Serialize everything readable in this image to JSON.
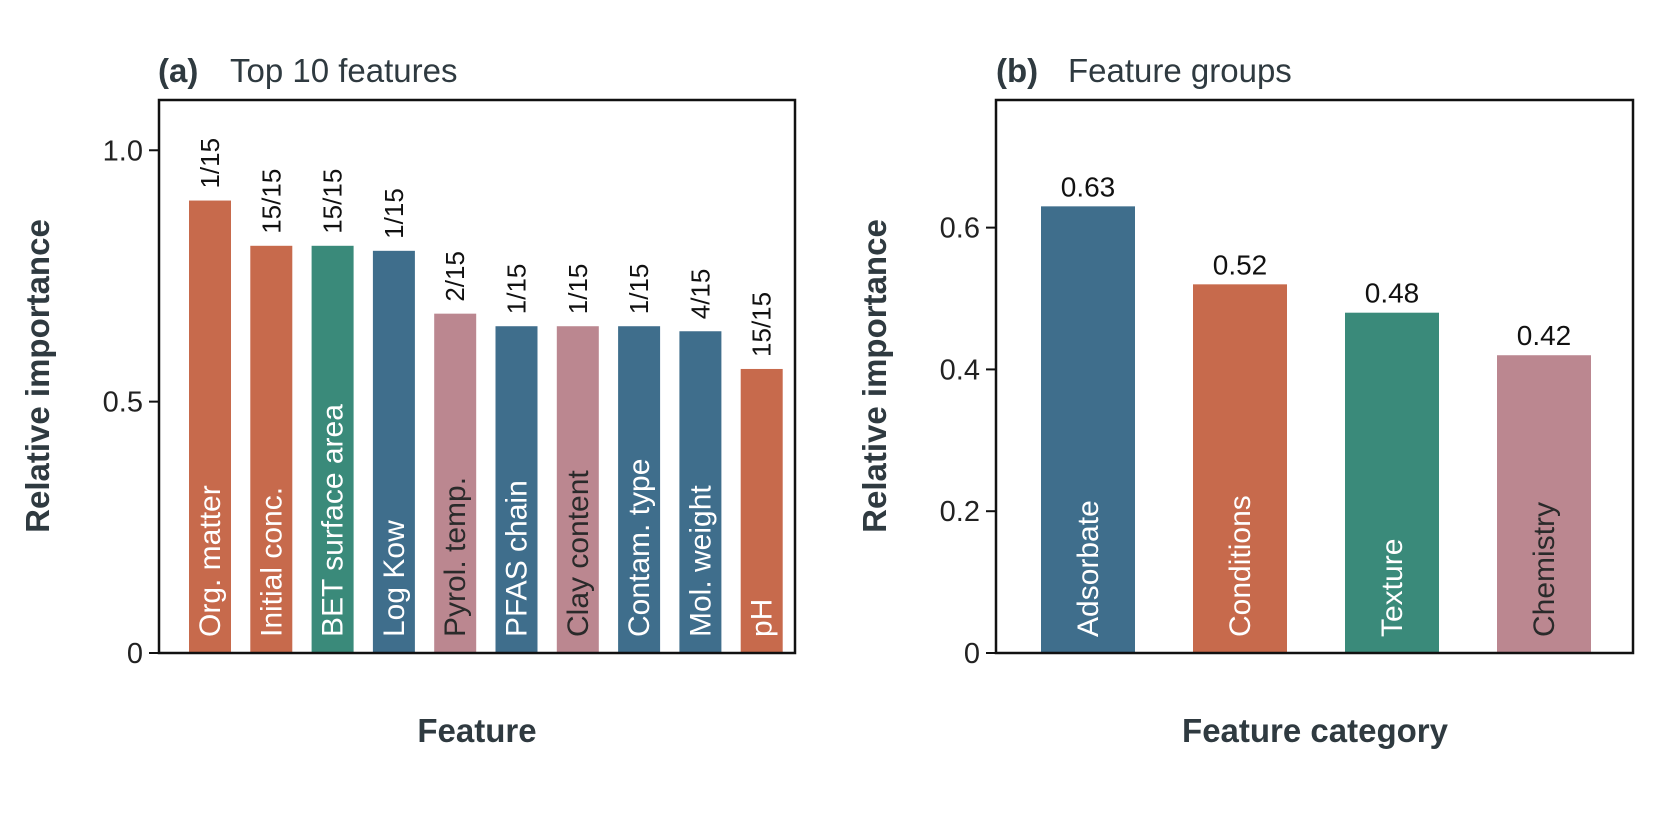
{
  "colors": {
    "orange": "#C76A4C",
    "teal": "#3A8A7A",
    "blue": "#3F6E8C",
    "pink": "#BB8790",
    "label_light": "#ffffff",
    "label_dark": "#2a2a2a"
  },
  "chart_data": [
    {
      "type": "bar",
      "panel": "(a)",
      "title": "Top 10 features",
      "xlabel": "Feature",
      "ylabel": "Relative importance",
      "ylim": [
        0,
        1.1
      ],
      "yticks": [
        0,
        0.5,
        1.0
      ],
      "ytick_labels": [
        "0",
        "0.5",
        "1.0"
      ],
      "grid": false,
      "categories": [
        "Org. matter",
        "Initial conc.",
        "BET surface area",
        "Log Kow",
        "Pyrol. temp.",
        "PFAS chain",
        "Clay content",
        "Contam. type",
        "Mol. weight",
        "pH"
      ],
      "values": [
        0.9,
        0.81,
        0.81,
        0.8,
        0.675,
        0.65,
        0.65,
        0.65,
        0.64,
        0.565
      ],
      "data_labels": [
        "1/15",
        "15/15",
        "15/15",
        "1/15",
        "2/15",
        "1/15",
        "1/15",
        "1/15",
        "4/15",
        "15/15"
      ],
      "bar_colors": [
        "orange",
        "orange",
        "teal",
        "blue",
        "pink",
        "blue",
        "pink",
        "blue",
        "blue",
        "orange"
      ]
    },
    {
      "type": "bar",
      "panel": "(b)",
      "title": "Feature groups",
      "xlabel": "Feature category",
      "ylabel": "Relative importance",
      "ylim": [
        0,
        0.78
      ],
      "yticks": [
        0,
        0.2,
        0.4,
        0.6
      ],
      "ytick_labels": [
        "0",
        "0.2",
        "0.4",
        "0.6"
      ],
      "grid": false,
      "categories": [
        "Adsorbate",
        "Conditions",
        "Texture",
        "Chemistry"
      ],
      "values": [
        0.63,
        0.52,
        0.48,
        0.42
      ],
      "data_labels": [
        "0.63",
        "0.52",
        "0.48",
        "0.42"
      ],
      "bar_colors": [
        "blue",
        "orange",
        "teal",
        "pink"
      ]
    }
  ]
}
